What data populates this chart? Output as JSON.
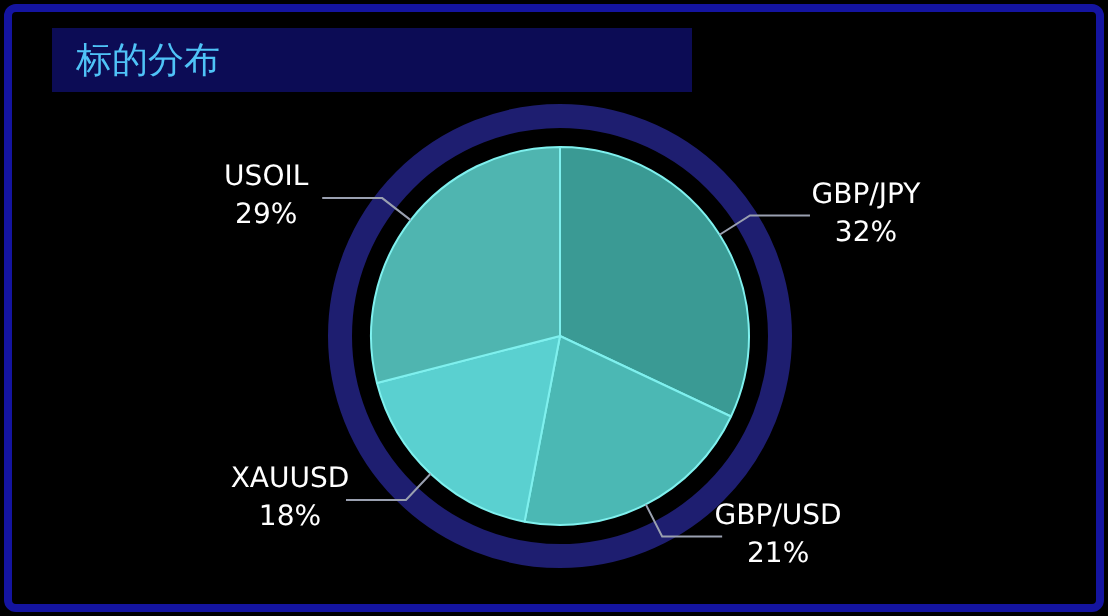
{
  "chart_data": {
    "type": "pie",
    "title": "标的分布",
    "categories": [
      "GBP/JPY",
      "GBP/USD",
      "XAUUSD",
      "USOIL"
    ],
    "values": [
      32,
      21,
      18,
      29
    ],
    "colors": [
      "#3a9a94",
      "#4bb8b4",
      "#5ad0d0",
      "#4fb5b0"
    ],
    "value_labels": [
      "32%",
      "21%",
      "18%",
      "29%"
    ],
    "legend": false
  }
}
